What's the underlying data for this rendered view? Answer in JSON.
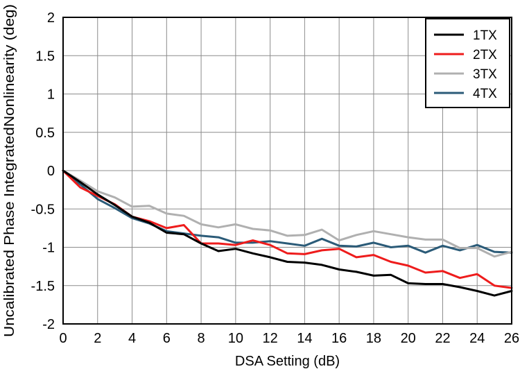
{
  "chart_data": {
    "type": "line",
    "title": "",
    "xlabel": "DSA Setting (dB)",
    "ylabel": "Uncalibrated Phase IntegratedNonlinearity (deg)",
    "xlim": [
      0,
      26
    ],
    "ylim": [
      -2,
      2
    ],
    "x_ticks": [
      0,
      2,
      4,
      6,
      8,
      10,
      12,
      14,
      16,
      18,
      20,
      22,
      24,
      26
    ],
    "y_ticks": [
      2,
      1.5,
      1,
      0.5,
      0,
      -0.5,
      -1,
      -1.5,
      -2
    ],
    "y_tick_labels": [
      "2",
      "1.5",
      "1",
      "0.5",
      "0",
      "-0.5",
      "-1",
      "-1.5",
      "-2"
    ],
    "grid": true,
    "legend_position": "top-right",
    "x": [
      0,
      1,
      2,
      3,
      4,
      5,
      6,
      7,
      8,
      9,
      10,
      11,
      12,
      13,
      14,
      15,
      16,
      17,
      18,
      19,
      20,
      21,
      22,
      23,
      24,
      25,
      26
    ],
    "series": [
      {
        "name": "1TX",
        "color": "#000000",
        "values": [
          0,
          -0.15,
          -0.31,
          -0.45,
          -0.6,
          -0.68,
          -0.81,
          -0.83,
          -0.95,
          -1.05,
          -1.02,
          -1.08,
          -1.13,
          -1.19,
          -1.2,
          -1.23,
          -1.29,
          -1.32,
          -1.37,
          -1.36,
          -1.47,
          -1.48,
          -1.48,
          -1.52,
          -1.57,
          -1.63,
          -1.57
        ]
      },
      {
        "name": "2TX",
        "color": "#ee1c1c",
        "values": [
          0,
          -0.22,
          -0.33,
          -0.44,
          -0.6,
          -0.66,
          -0.75,
          -0.71,
          -0.95,
          -0.95,
          -0.97,
          -0.91,
          -0.97,
          -1.08,
          -1.09,
          -1.04,
          -1.02,
          -1.13,
          -1.1,
          -1.19,
          -1.24,
          -1.33,
          -1.31,
          -1.4,
          -1.35,
          -1.5,
          -1.53
        ]
      },
      {
        "name": "3TX",
        "color": "#b0b0b0",
        "values": [
          0,
          -0.13,
          -0.27,
          -0.35,
          -0.47,
          -0.46,
          -0.56,
          -0.59,
          -0.7,
          -0.74,
          -0.7,
          -0.76,
          -0.78,
          -0.85,
          -0.84,
          -0.77,
          -0.91,
          -0.84,
          -0.79,
          -0.83,
          -0.87,
          -0.9,
          -0.9,
          -1.01,
          -1.01,
          -1.12,
          -1.06
        ]
      },
      {
        "name": "4TX",
        "color": "#2b5b78",
        "values": [
          0,
          -0.18,
          -0.37,
          -0.49,
          -0.62,
          -0.69,
          -0.79,
          -0.82,
          -0.85,
          -0.87,
          -0.94,
          -0.94,
          -0.92,
          -0.95,
          -0.98,
          -0.89,
          -0.98,
          -0.99,
          -0.94,
          -1.0,
          -0.98,
          -1.07,
          -0.98,
          -1.04,
          -0.97,
          -1.06,
          -1.07
        ]
      }
    ]
  }
}
